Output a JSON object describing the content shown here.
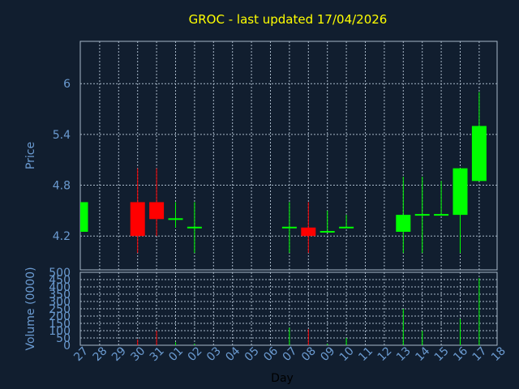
{
  "chart_data": {
    "type": "candlestick",
    "title": "GROC - last updated 17/04/2026",
    "xlabel": "Day",
    "ylabel_price": "Price",
    "ylabel_volume": "Volume (0000)",
    "x_ticks": [
      "27",
      "28",
      "29",
      "30",
      "31",
      "01",
      "02",
      "03",
      "04",
      "05",
      "06",
      "07",
      "08",
      "09",
      "10",
      "11",
      "12",
      "13",
      "14",
      "15",
      "16",
      "17",
      "18"
    ],
    "price_ticks": [
      "4.2",
      "4.8",
      "5.4",
      "6"
    ],
    "price_ylim": [
      3.8,
      6.5
    ],
    "volume_ticks": [
      "0",
      "50",
      "100",
      "150",
      "200",
      "250",
      "300",
      "350",
      "400",
      "450",
      "500"
    ],
    "volume_ylim": [
      0,
      500
    ],
    "colors": {
      "up": "#00ff00",
      "down": "#ff0000",
      "title": "#ffff00",
      "axis": "#6b9bd1",
      "grid": "#a8b8c8",
      "background": "#111e2f"
    },
    "candles": [
      {
        "x": "27",
        "open": 4.25,
        "high": 4.6,
        "low": 4.25,
        "close": 4.6,
        "volume": 0
      },
      {
        "x": "30",
        "open": 4.6,
        "high": 5.0,
        "low": 4.0,
        "close": 4.2,
        "volume": 40
      },
      {
        "x": "31",
        "open": 4.6,
        "high": 5.0,
        "low": 4.2,
        "close": 4.4,
        "volume": 100
      },
      {
        "x": "01",
        "open": 4.4,
        "high": 4.6,
        "low": 4.3,
        "close": 4.4,
        "volume": 20
      },
      {
        "x": "02",
        "open": 4.3,
        "high": 4.6,
        "low": 4.0,
        "close": 4.3,
        "volume": 10
      },
      {
        "x": "07",
        "open": 4.3,
        "high": 4.6,
        "low": 4.0,
        "close": 4.3,
        "volume": 120
      },
      {
        "x": "08",
        "open": 4.3,
        "high": 4.6,
        "low": 4.0,
        "close": 4.2,
        "volume": 110
      },
      {
        "x": "09",
        "open": 4.25,
        "high": 4.5,
        "low": 4.25,
        "close": 4.25,
        "volume": 10
      },
      {
        "x": "10",
        "open": 4.3,
        "high": 4.45,
        "low": 4.3,
        "close": 4.3,
        "volume": 50
      },
      {
        "x": "13",
        "open": 4.25,
        "high": 4.9,
        "low": 4.0,
        "close": 4.45,
        "volume": 250
      },
      {
        "x": "14",
        "open": 4.45,
        "high": 4.9,
        "low": 4.0,
        "close": 4.45,
        "volume": 100
      },
      {
        "x": "15",
        "open": 4.45,
        "high": 4.85,
        "low": 4.45,
        "close": 4.45,
        "volume": 0
      },
      {
        "x": "16",
        "open": 4.45,
        "high": 5.0,
        "low": 4.0,
        "close": 5.0,
        "volume": 180
      },
      {
        "x": "17",
        "open": 4.85,
        "high": 5.9,
        "low": 4.85,
        "close": 5.5,
        "volume": 460
      }
    ]
  }
}
